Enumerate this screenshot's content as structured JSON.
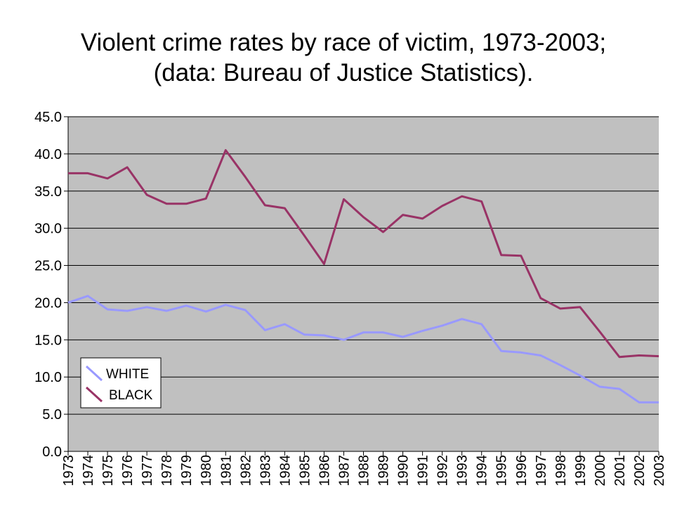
{
  "chart_data": {
    "type": "line",
    "title": "Violent crime rates by race of victim, 1973-2003;",
    "subtitle": "(data: Bureau of Justice Statistics).",
    "xlabel": "",
    "ylabel": "",
    "ylim": [
      0,
      45
    ],
    "y_ticks": [
      "0.0",
      "5.0",
      "10.0",
      "15.0",
      "20.0",
      "25.0",
      "30.0",
      "35.0",
      "40.0",
      "45.0"
    ],
    "grid": true,
    "legend_position": "bottom-left",
    "x": [
      "1973",
      "1974",
      "1975",
      "1976",
      "1977",
      "1978",
      "1979",
      "1980",
      "1981",
      "1982",
      "1983",
      "1984",
      "1985",
      "1986",
      "1987",
      "1988",
      "1989",
      "1990",
      "1991",
      "1992",
      "1993",
      "1994",
      "1995",
      "1996",
      "1997",
      "1998",
      "1999",
      "2000",
      "2001",
      "2002",
      "2003"
    ],
    "series": [
      {
        "name": "WHITE",
        "color": "#9999ff",
        "values": [
          20.0,
          20.9,
          19.1,
          18.9,
          19.4,
          18.9,
          19.6,
          18.8,
          19.7,
          19.0,
          16.3,
          17.1,
          15.7,
          15.6,
          15.0,
          16.0,
          16.0,
          15.4,
          16.2,
          16.9,
          17.8,
          17.1,
          13.5,
          13.3,
          12.9,
          11.6,
          10.2,
          8.7,
          8.4,
          6.6,
          6.6
        ]
      },
      {
        "name": "BLACK",
        "color": "#993366",
        "values": [
          37.4,
          37.4,
          36.7,
          38.2,
          34.5,
          33.3,
          33.3,
          34.0,
          40.5,
          36.9,
          33.1,
          32.7,
          29.0,
          25.2,
          33.9,
          31.5,
          29.5,
          31.8,
          31.3,
          33.0,
          34.3,
          33.6,
          26.4,
          26.3,
          20.6,
          19.2,
          19.4,
          16.1,
          12.7,
          12.9,
          12.8
        ]
      }
    ]
  }
}
